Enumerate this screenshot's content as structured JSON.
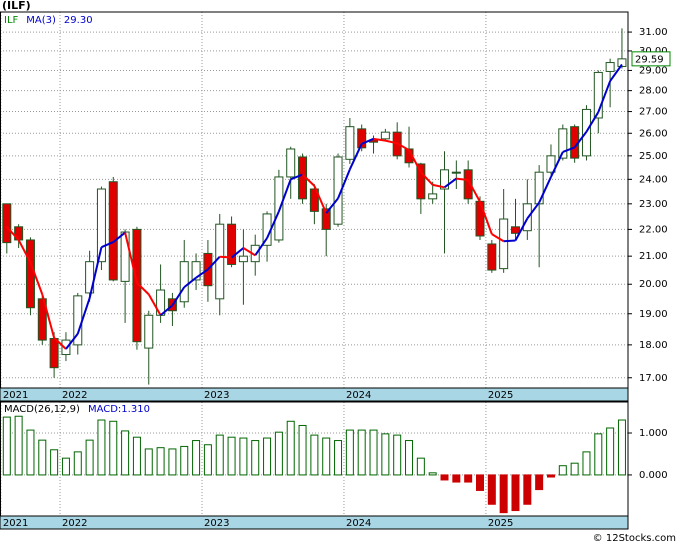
{
  "title": "(ILF)",
  "footer": "© 12Stocks.com",
  "chart_data": [
    {
      "type": "candlestick",
      "symbol": "ILF",
      "categories": [
        "2021",
        null,
        null,
        null,
        null,
        "2022",
        null,
        null,
        null,
        null,
        null,
        null,
        null,
        null,
        null,
        null,
        null,
        "2023",
        null,
        null,
        null,
        null,
        null,
        null,
        null,
        null,
        null,
        null,
        null,
        "2024",
        null,
        null,
        null,
        null,
        null,
        null,
        null,
        null,
        null,
        null,
        null,
        "2025",
        null,
        null,
        null,
        null,
        null,
        null,
        null,
        null,
        null,
        null,
        null
      ],
      "open": [
        23.0,
        22.1,
        21.6,
        19.5,
        18.2,
        17.7,
        18.0,
        19.7,
        20.8,
        23.9,
        20.1,
        22.0,
        17.9,
        18.95,
        19.5,
        19.4,
        20.15,
        21.1,
        19.5,
        22.2,
        20.8,
        20.8,
        21.4,
        21.6,
        24.1,
        24.95,
        23.6,
        22.8,
        22.2,
        24.85,
        26.2,
        25.7,
        25.75,
        26.05,
        25.3,
        24.65,
        23.2,
        23.6,
        24.3,
        24.4,
        23.1,
        21.45,
        20.55,
        22.1,
        21.95,
        23.0,
        24.3,
        24.9,
        26.3,
        25.0,
        26.7,
        28.95,
        29.2
      ],
      "high": [
        23.0,
        22.2,
        21.7,
        19.6,
        18.4,
        18.4,
        19.7,
        21.2,
        23.7,
        24.1,
        22.0,
        22.1,
        19.1,
        20.7,
        19.7,
        21.6,
        21.1,
        21.6,
        22.6,
        22.5,
        22.0,
        21.8,
        22.7,
        24.4,
        25.4,
        25.1,
        23.8,
        23.0,
        25.1,
        26.7,
        26.4,
        25.9,
        26.2,
        26.5,
        26.3,
        24.7,
        23.9,
        25.2,
        24.8,
        24.8,
        23.3,
        21.6,
        23.6,
        23.2,
        24.0,
        24.6,
        25.5,
        26.4,
        26.4,
        27.3,
        29.0,
        29.6,
        31.2
      ],
      "low": [
        21.1,
        21.3,
        18.95,
        18.0,
        17.0,
        17.5,
        17.7,
        19.4,
        20.5,
        20.1,
        18.7,
        17.85,
        16.8,
        18.7,
        18.6,
        19.2,
        19.8,
        19.4,
        18.95,
        20.6,
        19.3,
        20.3,
        20.8,
        21.5,
        23.2,
        23.0,
        22.2,
        21.0,
        22.1,
        24.65,
        25.2,
        25.1,
        25.65,
        24.85,
        24.5,
        22.6,
        23.0,
        21.1,
        23.6,
        23.0,
        21.6,
        20.4,
        20.4,
        21.6,
        21.6,
        20.6,
        24.2,
        24.8,
        24.7,
        24.8,
        26.0,
        27.2,
        29.1
      ],
      "close": [
        21.5,
        21.6,
        19.2,
        18.15,
        17.3,
        18.15,
        19.6,
        20.8,
        23.6,
        20.15,
        21.9,
        18.1,
        18.95,
        19.8,
        19.1,
        20.8,
        20.8,
        19.95,
        22.2,
        20.7,
        21.0,
        21.4,
        22.6,
        24.1,
        25.3,
        23.2,
        22.7,
        22.0,
        24.95,
        26.3,
        25.35,
        25.6,
        26.05,
        25.0,
        24.7,
        23.2,
        23.4,
        24.4,
        24.3,
        23.2,
        21.75,
        20.5,
        22.4,
        21.85,
        23.0,
        24.3,
        25.0,
        26.2,
        24.9,
        27.1,
        28.9,
        29.4,
        29.59
      ],
      "up_color": "#ffffff",
      "down_color": "#e00000",
      "outline_color": "#225522",
      "series": [
        {
          "name": "MA(3)",
          "up_color": "#0000cc",
          "down_color": "#ff0000",
          "legend_value": {
            "value": 29.3,
            "label": "29.30"
          },
          "values": [
            22.1,
            21.6,
            20.77,
            19.65,
            18.22,
            17.87,
            18.35,
            19.52,
            21.33,
            21.52,
            21.88,
            20.05,
            19.65,
            18.95,
            19.28,
            19.9,
            20.23,
            20.52,
            20.98,
            20.95,
            21.3,
            21.03,
            21.67,
            22.7,
            24.0,
            24.2,
            23.73,
            22.63,
            23.22,
            24.42,
            25.53,
            25.75,
            25.67,
            25.55,
            25.25,
            24.3,
            23.77,
            23.67,
            24.03,
            23.97,
            23.08,
            21.82,
            21.55,
            21.58,
            22.42,
            23.05,
            24.1,
            25.17,
            25.37,
            26.07,
            26.97,
            28.47,
            29.3
          ]
        }
      ],
      "log_scale": true,
      "grid": true,
      "ylim": [
        16.7,
        32.1
      ],
      "yticks": [
        {
          "value": 17,
          "label": "17.00"
        },
        {
          "value": 18,
          "label": "18.00"
        },
        {
          "value": 19,
          "label": "19.00"
        },
        {
          "value": 20,
          "label": "20.00"
        },
        {
          "value": 21,
          "label": "21.00"
        },
        {
          "value": 22,
          "label": "22.00"
        },
        {
          "value": 23,
          "label": "23.00"
        },
        {
          "value": 24,
          "label": "24.00"
        },
        {
          "value": 25,
          "label": "25.00"
        },
        {
          "value": 26,
          "label": "26.00"
        },
        {
          "value": 27,
          "label": "27.00"
        },
        {
          "value": 28,
          "label": "28.00"
        },
        {
          "value": 29,
          "label": "29.00"
        },
        {
          "value": 30,
          "label": "30.00"
        },
        {
          "value": 31,
          "label": "31.00"
        }
      ],
      "last_price_color": "#008800"
    },
    {
      "type": "bar",
      "name": "MACD(26,12,9)",
      "legend_value": {
        "value": 1.31,
        "label": "MACD:1.310"
      },
      "pos_color": "#006600",
      "neg_color": "#cc0000",
      "values": [
        1.38,
        1.4,
        1.07,
        0.83,
        0.6,
        0.4,
        0.55,
        0.83,
        1.31,
        1.28,
        1.05,
        0.9,
        0.62,
        0.65,
        0.62,
        0.68,
        0.82,
        0.72,
        0.95,
        0.9,
        0.88,
        0.82,
        0.88,
        1.02,
        1.28,
        1.18,
        0.95,
        0.88,
        0.82,
        1.07,
        1.07,
        1.07,
        0.98,
        0.95,
        0.82,
        0.4,
        0.05,
        -0.12,
        -0.17,
        -0.17,
        -0.37,
        -0.7,
        -0.9,
        -0.85,
        -0.7,
        -0.35,
        -0.05,
        0.22,
        0.28,
        0.55,
        0.98,
        1.12,
        1.31
      ],
      "ylim": [
        -0.98,
        1.74
      ],
      "yticks": [
        {
          "value": 0,
          "label": "0.000"
        },
        {
          "value": 1,
          "label": "1.000"
        }
      ],
      "grid": true
    }
  ]
}
